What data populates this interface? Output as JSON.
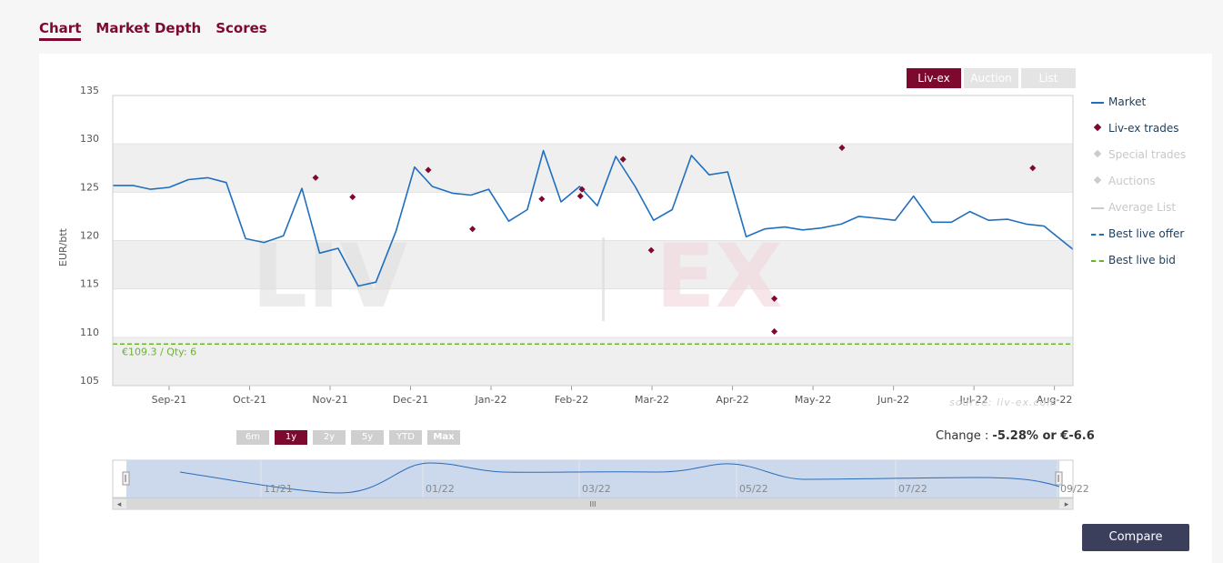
{
  "tabs": [
    {
      "label": "Chart",
      "active": true
    },
    {
      "label": "Market Depth",
      "active": false
    },
    {
      "label": "Scores",
      "active": false
    }
  ],
  "source_buttons": [
    {
      "label": "Liv-ex",
      "active": true
    },
    {
      "label": "Auction",
      "active": false
    },
    {
      "label": "List",
      "active": false
    }
  ],
  "legend": [
    {
      "label": "Market",
      "kind": "line",
      "color": "#1f6fbf",
      "dashed": false,
      "enabled": true
    },
    {
      "label": "Liv-ex trades",
      "kind": "diamond",
      "color": "#7d0a2e",
      "enabled": true
    },
    {
      "label": "Special trades",
      "kind": "diamond",
      "color": "#cccccc",
      "enabled": false
    },
    {
      "label": "Auctions",
      "kind": "diamond",
      "color": "#cccccc",
      "enabled": false
    },
    {
      "label": "Average List",
      "kind": "line",
      "color": "#cccccc",
      "dashed": false,
      "enabled": false
    },
    {
      "label": "Best live offer",
      "kind": "line",
      "color": "#1f6fbf",
      "dashed": true,
      "enabled": true
    },
    {
      "label": "Best live bid",
      "kind": "line",
      "color": "#69b42c",
      "dashed": true,
      "enabled": true
    }
  ],
  "watermark": {
    "left": "LIV",
    "right": "EX"
  },
  "source_note": "source: liv-ex.com",
  "range_buttons": [
    {
      "label": "6m",
      "active": false,
      "bold": false
    },
    {
      "label": "1y",
      "active": true,
      "bold": false
    },
    {
      "label": "2y",
      "active": false,
      "bold": false
    },
    {
      "label": "5y",
      "active": false,
      "bold": false
    },
    {
      "label": "YTD",
      "active": false,
      "bold": false
    },
    {
      "label": "Max",
      "active": false,
      "bold": true
    }
  ],
  "change": {
    "prefix": "Change : ",
    "value": "-5.28% or €-6.6"
  },
  "compare_label": "Compare",
  "navigator": {
    "labels": [
      "11/21",
      "01/22",
      "03/22",
      "05/22",
      "07/22",
      "09/22"
    ],
    "grip": "III"
  },
  "chart_data": {
    "type": "line",
    "ylabel": "EUR/btt",
    "ylim": [
      105,
      135
    ],
    "yticks": [
      105,
      110,
      115,
      120,
      125,
      130,
      135
    ],
    "xlim": [
      0,
      11.93
    ],
    "xticks": [
      {
        "label": "Sep-21",
        "x": 0.7
      },
      {
        "label": "Oct-21",
        "x": 1.7
      },
      {
        "label": "Nov-21",
        "x": 2.7
      },
      {
        "label": "Dec-21",
        "x": 3.7
      },
      {
        "label": "Jan-22",
        "x": 4.7
      },
      {
        "label": "Feb-22",
        "x": 5.7
      },
      {
        "label": "Mar-22",
        "x": 6.7
      },
      {
        "label": "Apr-22",
        "x": 7.7
      },
      {
        "label": "May-22",
        "x": 8.7
      },
      {
        "label": "Jun-22",
        "x": 9.7
      },
      {
        "label": "Jul-22",
        "x": 10.7
      },
      {
        "label": "Aug-22",
        "x": 11.7
      }
    ],
    "series": [
      {
        "name": "Market",
        "color": "#1f6fbf",
        "points": [
          [
            0,
            125.7
          ],
          [
            0.25,
            125.7
          ],
          [
            0.47,
            125.3
          ],
          [
            0.7,
            125.5
          ],
          [
            0.94,
            126.3
          ],
          [
            1.18,
            126.5
          ],
          [
            1.41,
            126
          ],
          [
            1.65,
            120.2
          ],
          [
            1.88,
            119.8
          ],
          [
            2.12,
            120.5
          ],
          [
            2.35,
            125.4
          ],
          [
            2.57,
            118.7
          ],
          [
            2.8,
            119.2
          ],
          [
            3.05,
            115.3
          ],
          [
            3.27,
            115.7
          ],
          [
            3.52,
            121
          ],
          [
            3.75,
            127.6
          ],
          [
            3.97,
            125.6
          ],
          [
            4.22,
            124.9
          ],
          [
            4.45,
            124.7
          ],
          [
            4.67,
            125.3
          ],
          [
            4.92,
            122
          ],
          [
            5.15,
            123.2
          ],
          [
            5.35,
            129.3
          ],
          [
            5.57,
            124
          ],
          [
            5.8,
            125.6
          ],
          [
            6.02,
            123.6
          ],
          [
            6.25,
            128.7
          ],
          [
            6.49,
            125.6
          ],
          [
            6.72,
            122.1
          ],
          [
            6.95,
            123.2
          ],
          [
            7.19,
            128.8
          ],
          [
            7.41,
            126.8
          ],
          [
            7.64,
            127.1
          ],
          [
            7.87,
            120.4
          ],
          [
            8.1,
            121.2
          ],
          [
            8.35,
            121.4
          ],
          [
            8.57,
            121.1
          ],
          [
            8.8,
            121.3
          ],
          [
            9.05,
            121.7
          ],
          [
            9.27,
            122.5
          ],
          [
            9.5,
            122.3
          ],
          [
            9.72,
            122.1
          ],
          [
            9.95,
            124.6
          ],
          [
            10.18,
            121.9
          ],
          [
            10.42,
            121.9
          ],
          [
            10.65,
            123
          ],
          [
            10.88,
            122.1
          ],
          [
            11.12,
            122.2
          ],
          [
            11.35,
            121.7
          ],
          [
            11.57,
            121.5
          ],
          [
            11.93,
            119.1
          ]
        ]
      },
      {
        "name": "Liv-ex trades",
        "color": "#7d0a2e",
        "points": [
          [
            2.52,
            126.5
          ],
          [
            2.98,
            124.5
          ],
          [
            3.92,
            127.3
          ],
          [
            4.47,
            121.2
          ],
          [
            5.33,
            124.3
          ],
          [
            5.81,
            124.6
          ],
          [
            5.83,
            125.3
          ],
          [
            6.34,
            128.4
          ],
          [
            6.69,
            119
          ],
          [
            8.22,
            114
          ],
          [
            8.22,
            110.6
          ],
          [
            9.06,
            129.6
          ],
          [
            11.43,
            127.5
          ]
        ]
      },
      {
        "name": "Best live bid",
        "color": "#69b42c",
        "value": 109.3,
        "label": "€109.3 / Qty: 6"
      }
    ]
  }
}
